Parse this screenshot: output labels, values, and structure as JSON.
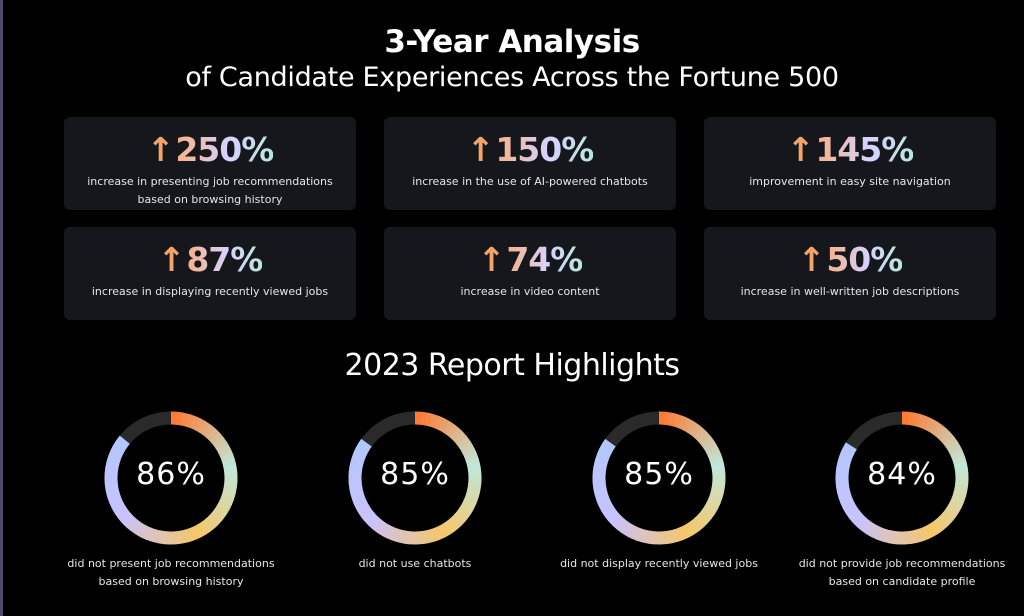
{
  "title": {
    "line1": "3-Year Analysis",
    "line2": "of Candidate Experiences Across the Fortune 500"
  },
  "stats": [
    {
      "arrow": "↑",
      "value": "250%",
      "desc": "increase in presenting job recommendations based on browsing history"
    },
    {
      "arrow": "↑",
      "value": "150%",
      "desc": "increase in the use of AI-powered chatbots"
    },
    {
      "arrow": "↑",
      "value": "145%",
      "desc": "improvement in easy site navigation"
    },
    {
      "arrow": "↑",
      "value": "87%",
      "desc": "increase in displaying recently viewed jobs"
    },
    {
      "arrow": "↑",
      "value": "74%",
      "desc": "increase in video content"
    },
    {
      "arrow": "↑",
      "value": "50%",
      "desc": "increase in well-written job descriptions"
    }
  ],
  "highlights": {
    "title": "2023 Report Highlights",
    "items": [
      {
        "percent": 86,
        "label": "86%",
        "desc": "did not present job recommendations based on browsing history"
      },
      {
        "percent": 85,
        "label": "85%",
        "desc": "did not use chatbots"
      },
      {
        "percent": 85,
        "label": "85%",
        "desc": "did not display recently viewed jobs"
      },
      {
        "percent": 84,
        "label": "84%",
        "desc": "did not provide job recommendations based on candidate profile"
      }
    ]
  },
  "colors": {
    "background": "#000000",
    "card": "#15171d",
    "arrow": "#f5a36a",
    "ring_track": "#2a2a2a",
    "ring_orange": "#ff7a33",
    "ring_mint": "#bfe8da",
    "ring_yellow": "#f6c76a",
    "ring_lavender": "#c9c2ff",
    "ring_blue": "#b3c7ff"
  }
}
